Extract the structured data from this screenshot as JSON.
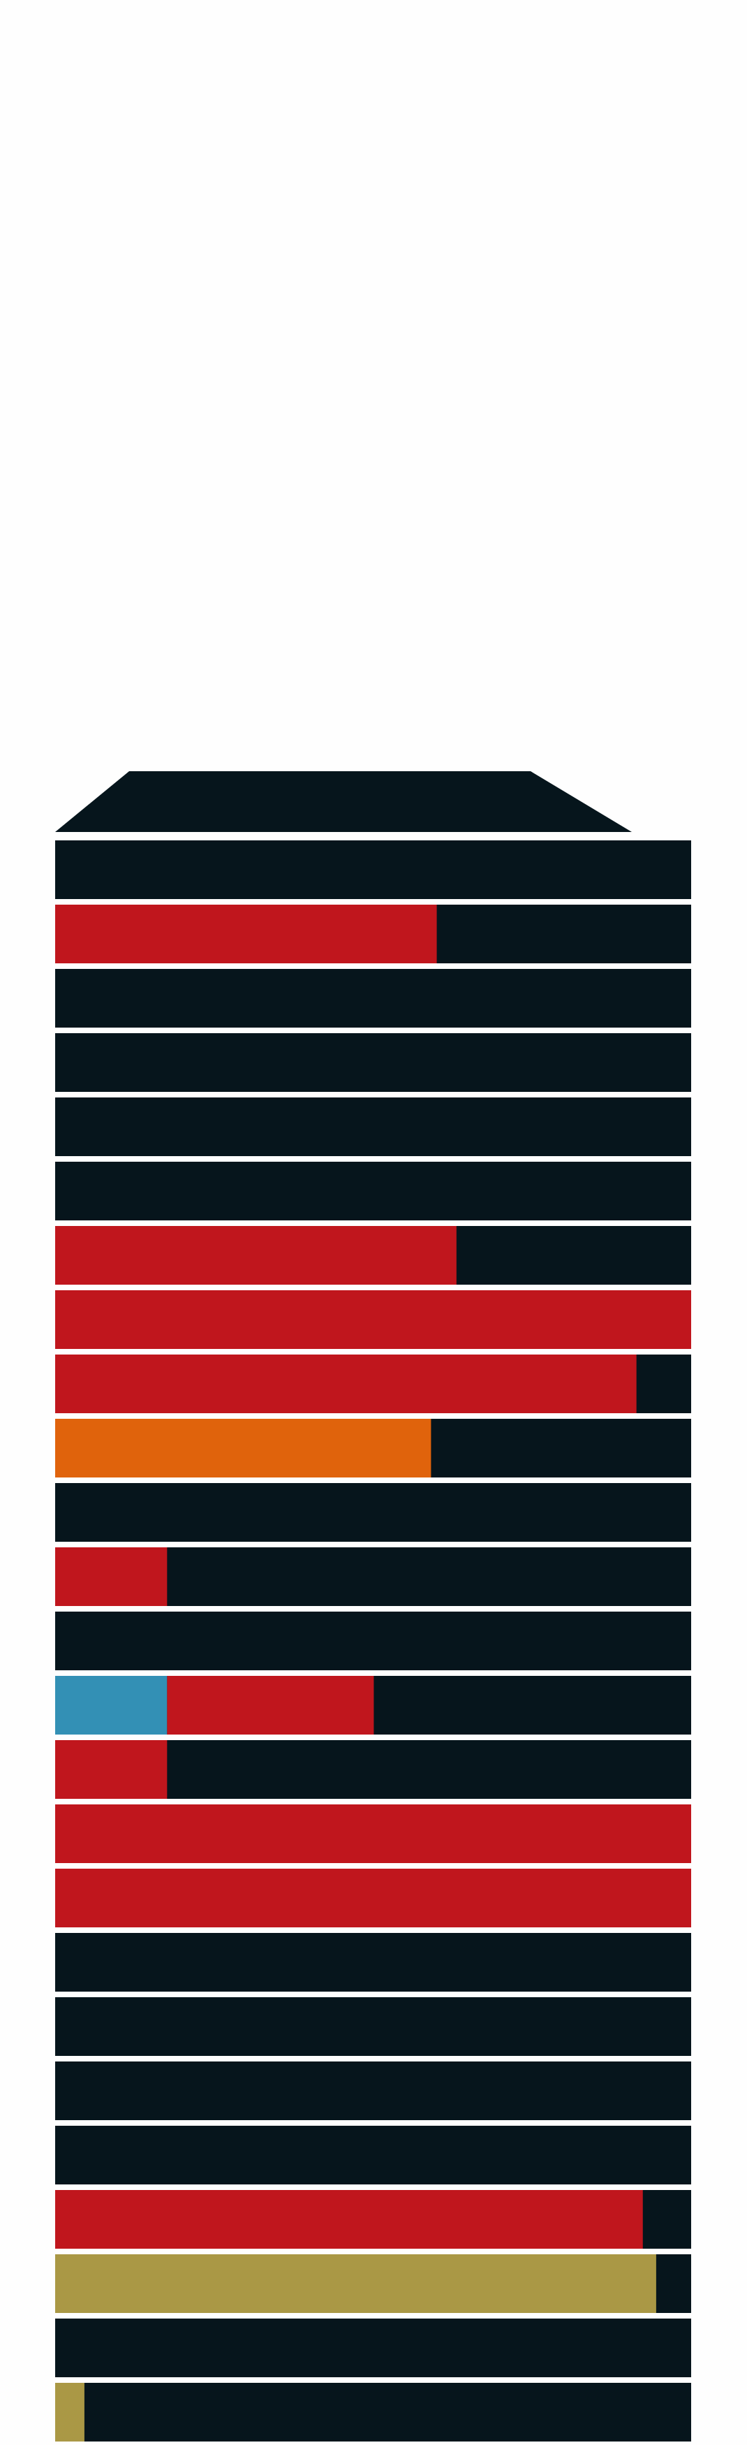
{
  "colors": {
    "background": "#fefefe",
    "track": "#06151c",
    "red": "#c0161d",
    "orange": "#e0630c",
    "blue": "#3390b5",
    "olive": "#aa9845"
  },
  "chart_data": {
    "type": "bar",
    "orientation": "horizontal",
    "stacked": true,
    "title": "",
    "xlabel": "",
    "ylabel": "",
    "xlim": [
      0,
      100
    ],
    "grid": false,
    "legend": "none",
    "rows": [
      {
        "segments": []
      },
      {
        "segments": [
          {
            "color": "red",
            "value": 60.0
          }
        ]
      },
      {
        "segments": []
      },
      {
        "segments": []
      },
      {
        "segments": []
      },
      {
        "segments": []
      },
      {
        "segments": [
          {
            "color": "red",
            "value": 63.1
          }
        ]
      },
      {
        "segments": [
          {
            "color": "red",
            "value": 100.0
          }
        ]
      },
      {
        "segments": [
          {
            "color": "red",
            "value": 91.4
          }
        ]
      },
      {
        "segments": [
          {
            "color": "orange",
            "value": 59.1
          }
        ]
      },
      {
        "segments": []
      },
      {
        "segments": [
          {
            "color": "red",
            "value": 17.6
          }
        ]
      },
      {
        "segments": []
      },
      {
        "segments": [
          {
            "color": "blue",
            "value": 17.6
          },
          {
            "color": "red",
            "value": 32.5
          }
        ]
      },
      {
        "segments": [
          {
            "color": "red",
            "value": 17.6
          }
        ]
      },
      {
        "segments": [
          {
            "color": "red",
            "value": 100.0
          }
        ]
      },
      {
        "segments": [
          {
            "color": "red",
            "value": 100.0
          }
        ]
      },
      {
        "segments": []
      },
      {
        "segments": []
      },
      {
        "segments": []
      },
      {
        "segments": []
      },
      {
        "segments": [
          {
            "color": "red",
            "value": 92.4
          }
        ]
      },
      {
        "segments": [
          {
            "color": "olive",
            "value": 94.5
          }
        ]
      },
      {
        "segments": []
      },
      {
        "segments": [
          {
            "color": "olive",
            "value": 4.6
          }
        ]
      }
    ]
  }
}
